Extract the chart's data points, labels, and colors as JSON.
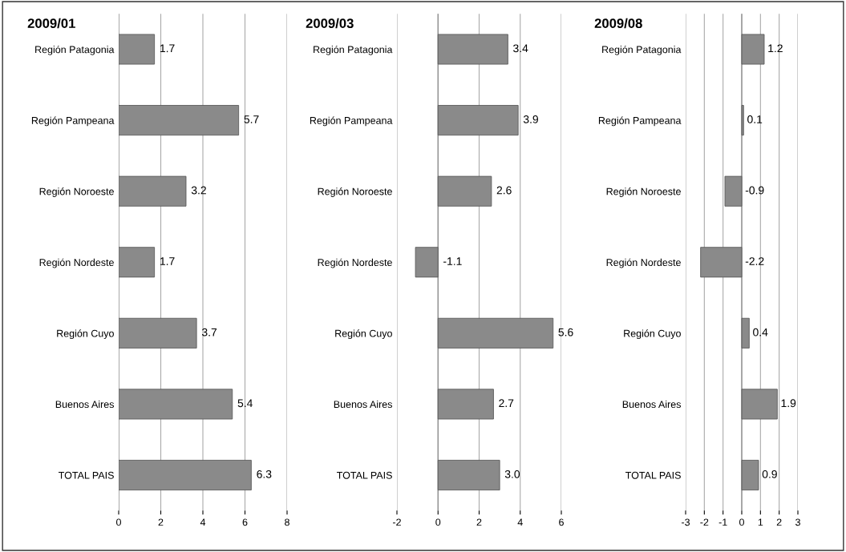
{
  "chart_data": [
    {
      "type": "bar",
      "orientation": "horizontal",
      "title": "2009/01",
      "categories": [
        "Región Patagonia",
        "Región Pampeana",
        "Región Noroeste",
        "Región Nordeste",
        "Región Cuyo",
        "Buenos Aires",
        "TOTAL PAIS"
      ],
      "values": [
        1.7,
        5.7,
        3.2,
        1.7,
        3.7,
        5.4,
        6.3
      ],
      "value_labels": [
        "1.7",
        "5.7",
        "3.2",
        "1.7",
        "3.7",
        "5.4",
        "6.3"
      ],
      "color": "#8a8a8a",
      "xlim": [
        0,
        8
      ],
      "xticks": [
        0,
        2,
        4,
        6,
        8
      ],
      "grid": "x"
    },
    {
      "type": "bar",
      "orientation": "horizontal",
      "title": "2009/03",
      "categories": [
        "Región Patagonia",
        "Región Pampeana",
        "Región Noroeste",
        "Región Nordeste",
        "Región Cuyo",
        "Buenos Aires",
        "TOTAL PAIS"
      ],
      "values": [
        3.4,
        3.9,
        2.6,
        -1.1,
        5.6,
        2.7,
        3.0
      ],
      "value_labels": [
        "3.4",
        "3.9",
        "2.6",
        "-1.1",
        "5.6",
        "2.7",
        "3.0"
      ],
      "color": "#8a8a8a",
      "xlim": [
        -2,
        6
      ],
      "xticks": [
        -2,
        0,
        2,
        4,
        6
      ],
      "grid": "x"
    },
    {
      "type": "bar",
      "orientation": "horizontal",
      "title": "2009/08",
      "categories": [
        "Región Patagonia",
        "Región Pampeana",
        "Región Noroeste",
        "Región Nordeste",
        "Región Cuyo",
        "Buenos Aires",
        "TOTAL PAIS"
      ],
      "values": [
        1.2,
        0.1,
        -0.9,
        -2.2,
        0.4,
        1.9,
        0.9
      ],
      "value_labels": [
        "1.2",
        "0.1",
        "-0.9",
        "-2.2",
        "0.4",
        "1.9",
        "0.9"
      ],
      "color": "#8a8a8a",
      "xlim": [
        -3,
        3
      ],
      "xticks": [
        -3,
        -2,
        -1,
        0,
        1,
        2,
        3
      ],
      "grid": "x"
    }
  ]
}
